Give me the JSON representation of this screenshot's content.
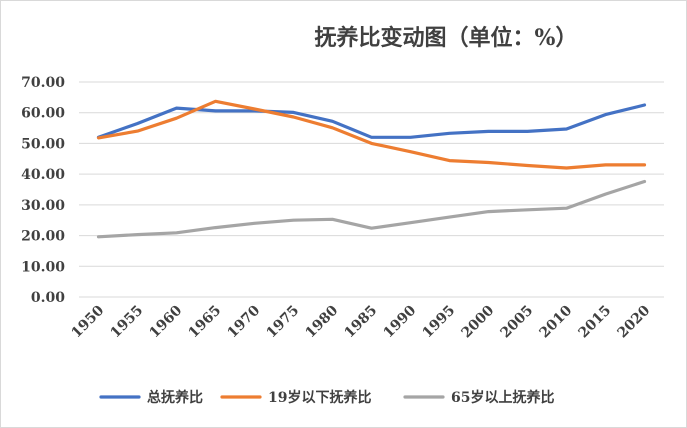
{
  "chart_data": {
    "type": "line",
    "title": "抚养比变动图（单位：%）",
    "x": [
      "1950",
      "1955",
      "1960",
      "1965",
      "1970",
      "1975",
      "1980",
      "1985",
      "1990",
      "1995",
      "2000",
      "2005",
      "2010",
      "2015",
      "2020"
    ],
    "ylim": [
      0,
      70
    ],
    "yticks": [
      "0.00",
      "10.00",
      "20.00",
      "30.00",
      "40.00",
      "50.00",
      "60.00",
      "70.00"
    ],
    "grid": true,
    "legend_position": "bottom",
    "series": [
      {
        "name": "总抚养比",
        "color": "#4472c4",
        "values": [
          52.0,
          56.5,
          61.5,
          60.6,
          60.6,
          60.1,
          57.2,
          52.0,
          52.0,
          53.3,
          53.9,
          53.9,
          54.7,
          59.4,
          62.5
        ]
      },
      {
        "name": "19岁以下抚养比",
        "color": "#ed7d31",
        "values": [
          51.8,
          54.0,
          58.2,
          63.7,
          61.2,
          58.6,
          55.1,
          50.0,
          47.3,
          44.4,
          43.8,
          42.8,
          42.0,
          43.0,
          43.0
        ]
      },
      {
        "name": "65岁以上抚养比",
        "color": "#a5a5a5",
        "values": [
          19.6,
          20.3,
          20.9,
          22.6,
          24.0,
          25.0,
          25.3,
          22.4,
          24.2,
          26.0,
          27.8,
          28.4,
          28.9,
          33.5,
          37.6
        ]
      }
    ]
  }
}
